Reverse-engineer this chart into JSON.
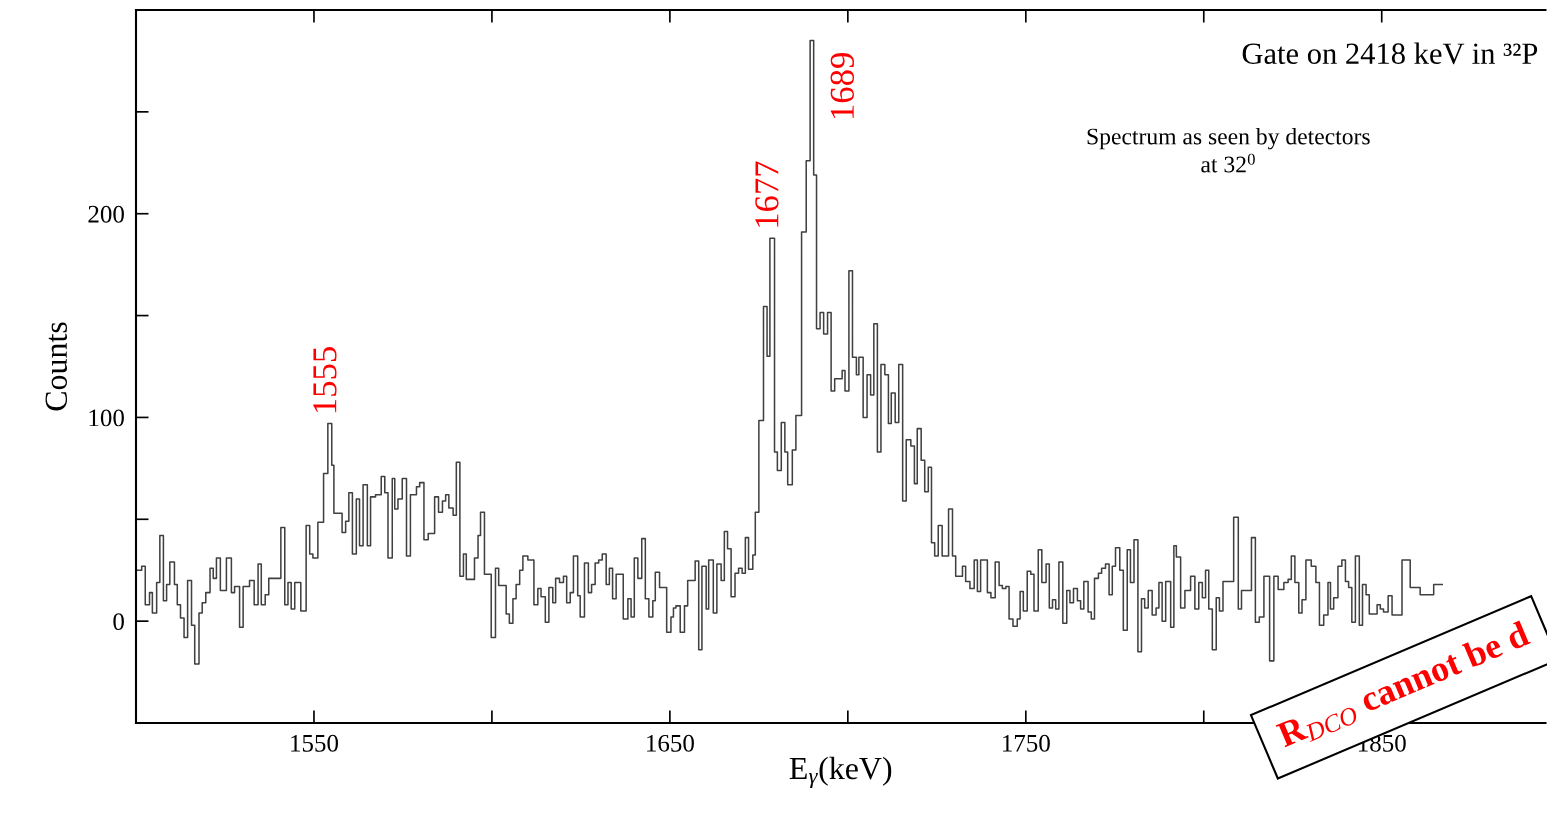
{
  "chart_data": {
    "type": "step",
    "title": "Gate on 2418 keV in ³²P",
    "subtitle": "Spectrum as seen by detectors\nat 32$^{0}$",
    "xlabel": "E$_{γ}$(keV)",
    "ylabel": "Counts",
    "xlim": [
      1500,
      1896
    ],
    "ylim": [
      -50,
      300
    ],
    "xticks": [
      {
        "value": 1500,
        "label": null
      },
      1550,
      {
        "value": 1600,
        "label": null
      },
      1650,
      {
        "value": 1700,
        "label": null
      },
      1750,
      {
        "value": 1800,
        "label": null
      },
      1850
    ],
    "yticks": [
      {
        "value": -50,
        "label": null
      },
      0,
      {
        "value": 50,
        "label": null
      },
      100,
      {
        "value": 150,
        "label": null
      },
      200,
      {
        "value": 250,
        "label": null
      }
    ],
    "grid": false,
    "series": [
      {
        "color": "#404040",
        "x": [
          1500.0,
          1501.6,
          1502.6,
          1503.8,
          1504.6,
          1505.8,
          1506.7,
          1507.7,
          1508.6,
          1509.5,
          1510.8,
          1511.6,
          1512.5,
          1513.5,
          1514.5,
          1515.6,
          1516.5,
          1517.7,
          1518.6,
          1519.6,
          1520.8,
          1521.7,
          1522.6,
          1523.7,
          1525.4,
          1526.8,
          1527.7,
          1529.1,
          1530.1,
          1531.9,
          1533.2,
          1534.3,
          1535.2,
          1536.3,
          1537.3,
          1540.7,
          1541.8,
          1542.7,
          1543.6,
          1544.6,
          1546.3,
          1547.8,
          1548.8,
          1549.7,
          1551.1,
          1552.7,
          1553.9,
          1555.0,
          1555.6,
          1557.9,
          1558.9,
          1559.8,
          1560.8,
          1561.9,
          1562.8,
          1563.8,
          1565.0,
          1565.9,
          1567.3,
          1568.9,
          1569.9,
          1570.8,
          1572.0,
          1572.7,
          1573.6,
          1574.8,
          1576.0,
          1577.1,
          1578.8,
          1579.7,
          1580.9,
          1582.1,
          1583.9,
          1585.0,
          1586.1,
          1587.0,
          1587.9,
          1589.1,
          1590.0,
          1591.0,
          1592.0,
          1592.8,
          1595.1,
          1596.1,
          1596.8,
          1597.9,
          1599.8,
          1601.0,
          1601.9,
          1604.0,
          1604.9,
          1605.9,
          1606.8,
          1607.8,
          1608.7,
          1610.1,
          1611.8,
          1612.9,
          1613.8,
          1615.0,
          1616.0,
          1617.1,
          1617.9,
          1619.0,
          1620.1,
          1621.0,
          1622.0,
          1622.9,
          1624.1,
          1624.8,
          1626.0,
          1627.1,
          1628.0,
          1629.0,
          1630.0,
          1631.0,
          1632.1,
          1633.0,
          1633.9,
          1634.9,
          1636.9,
          1638.2,
          1639.1,
          1640.0,
          1641.0,
          1642.1,
          1643.1,
          1644.1,
          1645.2,
          1645.9,
          1647.1,
          1649.1,
          1650.3,
          1651.0,
          1651.7,
          1652.9,
          1654.1,
          1655.0,
          1657.1,
          1658.1,
          1659.0,
          1660.2,
          1660.9,
          1662.2,
          1663.2,
          1664.4,
          1665.3,
          1666.2,
          1667.2,
          1668.3,
          1669.3,
          1670.3,
          1671.2,
          1672.1,
          1673.3,
          1674.0,
          1675.0,
          1676.3,
          1677.3,
          1678.1,
          1679.4,
          1680.2,
          1681.3,
          1682.3,
          1683.1,
          1684.4,
          1685.4,
          1687.0,
          1688.3,
          1689.4,
          1690.4,
          1691.2,
          1692.2,
          1693.2,
          1694.3,
          1695.3,
          1696.3,
          1698.4,
          1699.2,
          1700.3,
          1701.3,
          1702.4,
          1703.1,
          1704.3,
          1705.4,
          1706.4,
          1707.3,
          1708.3,
          1709.3,
          1710.4,
          1711.4,
          1712.2,
          1713.3,
          1714.3,
          1715.4,
          1716.4,
          1717.7,
          1718.7,
          1719.5,
          1720.6,
          1721.6,
          1722.6,
          1723.5,
          1724.4,
          1725.4,
          1726.5,
          1728.3,
          1729.4,
          1730.3,
          1732.2,
          1733.1,
          1734.3,
          1735.5,
          1736.4,
          1737.3,
          1739.2,
          1740.2,
          1741.4,
          1742.5,
          1743.4,
          1744.4,
          1745.3,
          1746.4,
          1747.6,
          1748.4,
          1749.3,
          1750.4,
          1751.4,
          1752.3,
          1753.5,
          1754.5,
          1755.7,
          1756.6,
          1757.5,
          1758.4,
          1759.3,
          1760.4,
          1761.5,
          1762.4,
          1763.4,
          1764.5,
          1765.4,
          1766.3,
          1767.5,
          1768.4,
          1769.3,
          1770.4,
          1771.3,
          1772.4,
          1773.4,
          1774.3,
          1775.2,
          1776.4,
          1777.4,
          1778.5,
          1779.4,
          1780.4,
          1781.5,
          1782.5,
          1783.4,
          1784.4,
          1785.5,
          1786.6,
          1787.4,
          1788.3,
          1789.3,
          1790.7,
          1791.6,
          1792.3,
          1793.5,
          1794.7,
          1796.3,
          1797.5,
          1798.6,
          1799.6,
          1800.5,
          1801.4,
          1802.4,
          1803.5,
          1804.4,
          1805.4,
          1807.0,
          1808.4,
          1809.7,
          1810.6,
          1813.4,
          1814.5,
          1815.6,
          1816.9,
          1818.5,
          1819.7,
          1820.9,
          1822.5,
          1823.7,
          1824.6,
          1825.6,
          1826.7,
          1827.6,
          1828.7,
          1830.2,
          1831.5,
          1832.5,
          1833.7,
          1834.9,
          1835.6,
          1836.5,
          1837.7,
          1838.8,
          1839.8,
          1840.7,
          1841.6,
          1842.6,
          1843.7,
          1844.6,
          1845.6,
          1846.5,
          1848.7,
          1849.6,
          1850.5,
          1851.8,
          1852.9,
          1855.7,
          1858.0,
          1860.8,
          1864.6,
          1867.0
        ],
        "values": [
          25,
          27,
          8,
          14,
          4,
          19,
          42,
          10,
          18,
          29,
          18,
          8,
          1.5,
          -8,
          20,
          -2,
          -21,
          4,
          9,
          14,
          26,
          21,
          31,
          15,
          31,
          14,
          17,
          -3,
          17,
          20,
          8,
          28,
          8,
          13,
          21,
          46,
          8,
          19,
          6,
          19,
          5,
          47,
          33,
          31,
          48.5,
          72.5,
          97,
          76.5,
          53,
          43.5,
          49,
          63,
          33,
          60,
          37,
          67,
          37,
          61,
          62,
          71,
          63,
          31,
          70,
          55,
          60,
          70,
          32,
          62,
          66,
          68,
          40,
          43,
          61,
          53.5,
          59,
          62,
          55.5,
          52,
          78,
          22,
          33,
          20.5,
          31,
          42,
          53.5,
          23,
          -8,
          26,
          17.5,
          3.5,
          -1,
          11,
          18,
          25,
          32,
          30,
          8,
          16,
          12,
          -0.5,
          16.5,
          9,
          21,
          19,
          22,
          9,
          14,
          32,
          12.5,
          2,
          28.5,
          14,
          18,
          28.5,
          30,
          33,
          18,
          26,
          11,
          23,
          1,
          11,
          2,
          31,
          21,
          40.5,
          11,
          2,
          10,
          24,
          16.5,
          -5.5,
          2,
          6.5,
          7.5,
          -5.5,
          7.5,
          20,
          29.5,
          -14,
          27,
          6,
          30,
          4,
          28,
          20,
          44,
          35.5,
          12,
          23.5,
          26,
          23.5,
          41,
          25.5,
          32.5,
          53.5,
          98.5,
          154.5,
          130,
          188,
          83,
          74,
          97.5,
          83,
          67,
          84,
          101,
          191,
          226,
          285,
          219,
          143.5,
          151.5,
          141,
          151.5,
          113,
          119,
          123,
          113,
          172,
          129.5,
          121,
          129.5,
          100,
          121,
          111,
          146,
          83,
          126,
          121,
          97,
          112,
          97.5,
          126,
          59,
          89,
          86,
          67.5,
          94.5,
          79,
          63.5,
          75.5,
          38.5,
          32,
          47,
          32,
          55,
          32,
          22,
          27,
          19.5,
          16,
          30,
          14.5,
          30,
          14,
          11.5,
          29,
          17.5,
          16,
          17,
          1,
          -2.5,
          1,
          14.5,
          5,
          24.5,
          23,
          5,
          35,
          19,
          28,
          6.5,
          10.5,
          6,
          29,
          -1,
          15,
          9,
          16,
          10,
          6,
          19.5,
          4.5,
          1,
          21,
          23.5,
          26,
          28,
          13,
          27,
          36,
          25,
          -4.5,
          35,
          19,
          40,
          -15,
          11,
          6.5,
          15,
          3,
          6.5,
          19,
          0,
          19.5,
          -3,
          37,
          31.5,
          6.5,
          15,
          22,
          6,
          19,
          11.5,
          25,
          6,
          -14,
          11.5,
          5,
          19.5,
          19.5,
          51,
          6,
          15,
          41,
          -0.5,
          2,
          22,
          -19.5,
          22,
          15.5,
          19,
          20.5,
          32,
          19,
          4,
          10.5,
          30,
          27,
          19,
          -2,
          3,
          19,
          6,
          11.5,
          27,
          30,
          19.5,
          16.5,
          -0.5,
          32,
          -2,
          18,
          13,
          3.5,
          8,
          6,
          4.5,
          12.5,
          3,
          30,
          16.5,
          13,
          18,
          18
        ]
      }
    ],
    "annotations": [
      {
        "text": "1555",
        "x": 1553.9,
        "y": 97
      },
      {
        "text": "1677",
        "x": 1678.1,
        "y": 188
      },
      {
        "text": "1689",
        "x": 1689.4,
        "y": 285
      },
      "R$_{DCO}$ cannot be d"
    ]
  }
}
